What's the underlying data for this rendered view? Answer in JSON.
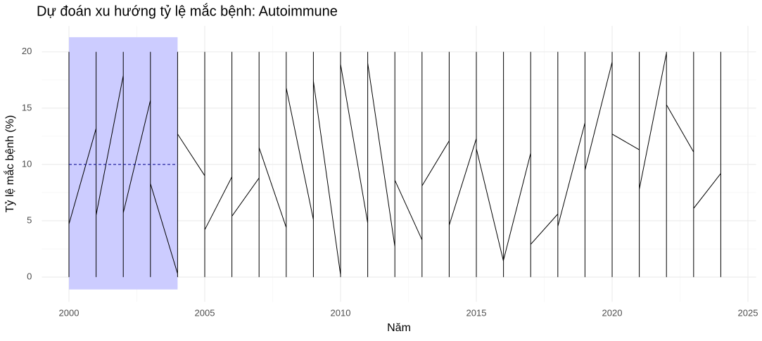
{
  "chart_data": {
    "type": "line",
    "title": "Dự đoán xu hướng tỷ lệ mắc bệnh: Autoimmune",
    "x_label": "Năm",
    "y_label": "Tỷ lệ mắc bệnh (%)",
    "x": [
      2000,
      2000,
      2000,
      2001,
      2001,
      2001,
      2001,
      2002,
      2002,
      2002,
      2002,
      2003,
      2003,
      2003,
      2003,
      2004,
      2004,
      2004,
      2004,
      2005,
      2005,
      2005,
      2005,
      2006,
      2006,
      2006,
      2006,
      2007,
      2007,
      2007,
      2007,
      2008,
      2008,
      2008,
      2008,
      2009,
      2009,
      2009,
      2009,
      2010,
      2010,
      2010,
      2010,
      2011,
      2011,
      2011,
      2011,
      2012,
      2012,
      2012,
      2012,
      2013,
      2013,
      2013,
      2013,
      2014,
      2014,
      2014,
      2014,
      2015,
      2015,
      2015,
      2015,
      2016,
      2016,
      2016,
      2016,
      2017,
      2017,
      2017,
      2017,
      2018,
      2018,
      2018,
      2018,
      2019,
      2019,
      2019,
      2019,
      2020,
      2020,
      2020,
      2020,
      2021,
      2021,
      2021,
      2021,
      2022,
      2022,
      2022,
      2022,
      2023,
      2023,
      2023,
      2023,
      2024,
      2024,
      2024
    ],
    "values": [
      0,
      20,
      4.7,
      13.2,
      0,
      20,
      5.5,
      17.9,
      0,
      20,
      5.7,
      15.7,
      0,
      20,
      8.3,
      0.3,
      0,
      20,
      12.7,
      9.0,
      0,
      20,
      4.2,
      8.9,
      0,
      20,
      5.4,
      8.8,
      0,
      20,
      11.5,
      4.4,
      0,
      20,
      16.8,
      5.1,
      0,
      20,
      17.4,
      0.2,
      0,
      20,
      18.9,
      4.8,
      0,
      20,
      19.0,
      2.7,
      0,
      20,
      8.6,
      3.3,
      0,
      20,
      8.1,
      12.1,
      0,
      20,
      4.6,
      12.3,
      0,
      20,
      11.4,
      1.4,
      0,
      20,
      1.5,
      11.0,
      0,
      20,
      2.9,
      5.6,
      0,
      20,
      4.5,
      13.7,
      0,
      20,
      9.5,
      19.1,
      0,
      20,
      12.7,
      11.3,
      0,
      20,
      7.8,
      19.9,
      0,
      20,
      15.3,
      11.1,
      0,
      20,
      6.1,
      9.2,
      0,
      20
    ],
    "color": "#000000",
    "highlight": {
      "xrange": [
        2000,
        2004
      ],
      "yrange": [
        -1.1,
        21.3
      ],
      "color": "#ccccff"
    },
    "reference_line": {
      "value": 10,
      "xrange": [
        2000,
        2004
      ],
      "color": "#00008b"
    },
    "xlim": [
      1999,
      2025.3
    ],
    "ylim": [
      -2.2,
      22.3
    ],
    "xticks": [
      2000,
      2005,
      2010,
      2015,
      2020,
      2025
    ],
    "yticks": [
      0,
      5,
      10,
      15,
      20
    ],
    "grid": true
  }
}
